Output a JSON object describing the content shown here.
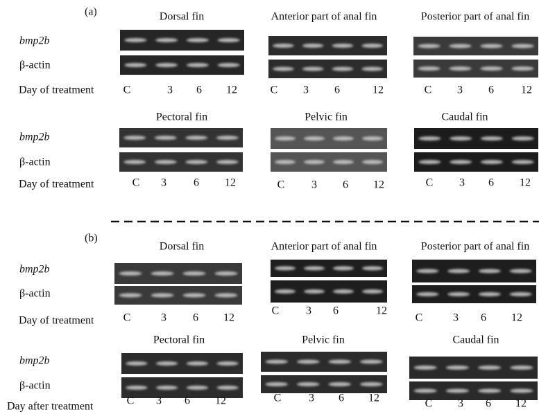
{
  "panels": [
    {
      "label": "(a)",
      "rows": [
        {
          "row_labels": [
            "bmp2b",
            "β-actin"
          ],
          "day_label": "Day of treatment",
          "gels": [
            {
              "title": "Dorsal fin",
              "lanes": [
                "C",
                "3",
                "6",
                "12"
              ]
            },
            {
              "title": "Anterior part of anal fin",
              "lanes": [
                "C",
                "3",
                "6",
                "12"
              ]
            },
            {
              "title": "Posterior part of anal fin",
              "lanes": [
                "C",
                "3",
                "6",
                "12"
              ]
            }
          ]
        },
        {
          "row_labels": [
            "bmp2b",
            "β-actin"
          ],
          "day_label": "Day of treatment",
          "gels": [
            {
              "title": "Pectoral fin",
              "lanes": [
                "C",
                "3",
                "6",
                "12"
              ]
            },
            {
              "title": "Pelvic fin",
              "lanes": [
                "C",
                "3",
                "6",
                "12"
              ]
            },
            {
              "title": "Caudal fin",
              "lanes": [
                "C",
                "3",
                "6",
                "12"
              ]
            }
          ]
        }
      ]
    },
    {
      "label": "(b)",
      "rows": [
        {
          "row_labels": [
            "bmp2b",
            "β-actin"
          ],
          "day_label": "Day of treatment",
          "gels": [
            {
              "title": "Dorsal fin",
              "lanes": [
                "C",
                "3",
                "6",
                "12"
              ]
            },
            {
              "title": "Anterior part of anal fin",
              "lanes": [
                "C",
                "3",
                "6",
                "12"
              ]
            },
            {
              "title": "Posterior part of anal fin",
              "lanes": [
                "C",
                "3",
                "6",
                "12"
              ]
            }
          ]
        },
        {
          "row_labels": [
            "bmp2b",
            "β-actin"
          ],
          "day_label": "Day after treatment",
          "gels": [
            {
              "title": "Pectoral fin",
              "lanes": [
                "C",
                "3",
                "6",
                "12"
              ]
            },
            {
              "title": "Pelvic fin",
              "lanes": [
                "C",
                "3",
                "6",
                "12"
              ]
            },
            {
              "title": "Caudal fin",
              "lanes": [
                "C",
                "3",
                "6",
                "12"
              ]
            }
          ]
        }
      ]
    }
  ]
}
